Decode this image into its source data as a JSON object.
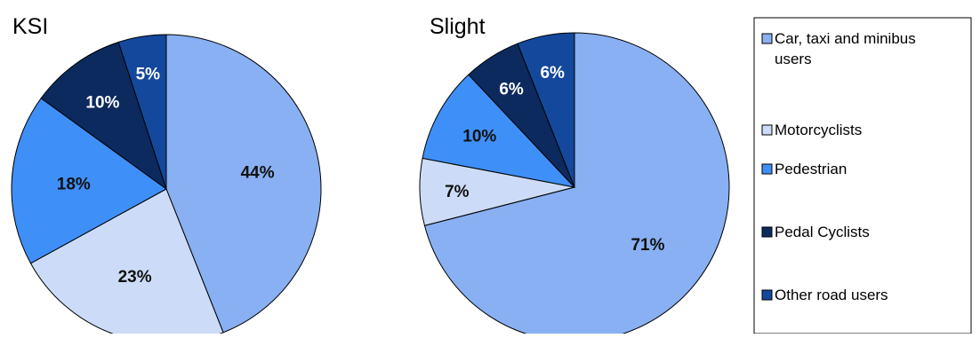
{
  "chart_data": [
    {
      "type": "pie",
      "title": "KSI",
      "categories": [
        "Car, taxi and minibus users",
        "Motorcyclists",
        "Pedestrian",
        "Pedal Cyclists",
        "Other road users"
      ],
      "values": [
        44,
        23,
        18,
        10,
        5
      ],
      "labels": [
        "44%",
        "23%",
        "18%",
        "10%",
        "5%"
      ],
      "start": "12 o'clock",
      "direction": "clockwise"
    },
    {
      "type": "pie",
      "title": "Slight",
      "categories": [
        "Car, taxi and minibus users",
        "Motorcyclists",
        "Pedestrian",
        "Pedal Cyclists",
        "Other road users"
      ],
      "values": [
        71,
        7,
        10,
        6,
        6
      ],
      "labels": [
        "71%",
        "7%",
        "10%",
        "6%",
        "6%"
      ],
      "start": "12 o'clock",
      "direction": "clockwise"
    }
  ],
  "legend": {
    "placement": "right",
    "items": [
      {
        "label_lines": [
          "Car, taxi and minibus",
          "users"
        ],
        "color": "#88b0f2"
      },
      {
        "label_lines": [
          "Motorcyclists"
        ],
        "color": "#ccdcf8"
      },
      {
        "label_lines": [
          "Pedestrian"
        ],
        "color": "#3f8ff8"
      },
      {
        "label_lines": [
          "Pedal Cyclists"
        ],
        "color": "#0c2a5e"
      },
      {
        "label_lines": [
          "Other road users"
        ],
        "color": "#14489c"
      }
    ]
  },
  "colors": {
    "slices": [
      "#88b0f2",
      "#ccdcf8",
      "#3f8ff8",
      "#0c2a5e",
      "#14489c"
    ],
    "label_dark_text": "#111111",
    "label_light_text": "#ffffff",
    "stroke": "#000000"
  }
}
